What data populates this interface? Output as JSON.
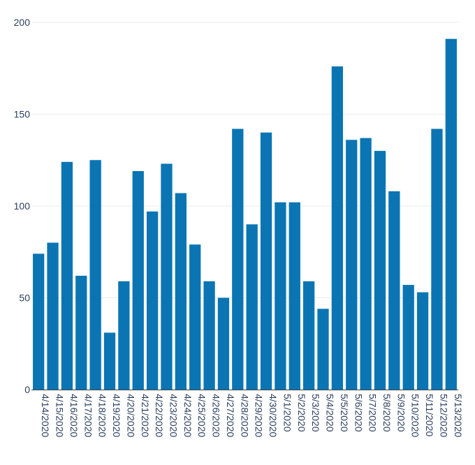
{
  "chart_data": {
    "type": "bar",
    "title": "",
    "xlabel": "",
    "ylabel": "",
    "categories": [
      "4/14/2020",
      "4/15/2020",
      "4/16/2020",
      "4/17/2020",
      "4/18/2020",
      "4/19/2020",
      "4/20/2020",
      "4/21/2020",
      "4/22/2020",
      "4/23/2020",
      "4/24/2020",
      "4/25/2020",
      "4/26/2020",
      "4/27/2020",
      "4/28/2020",
      "4/29/2020",
      "4/30/2020",
      "5/1/2020",
      "5/2/2020",
      "5/3/2020",
      "5/4/2020",
      "5/5/2020",
      "5/6/2020",
      "5/7/2020",
      "5/8/2020",
      "5/9/2020",
      "5/10/2020",
      "5/11/2020",
      "5/12/2020",
      "5/13/2020"
    ],
    "values": [
      74,
      80,
      124,
      62,
      125,
      31,
      59,
      119,
      97,
      123,
      107,
      79,
      59,
      50,
      142,
      90,
      140,
      102,
      102,
      59,
      44,
      176,
      136,
      137,
      130,
      108,
      57,
      53,
      142,
      191
    ],
    "ylim": [
      0,
      200
    ],
    "yticks": [
      0,
      50,
      100,
      150,
      200
    ],
    "grid": true,
    "bar_color": "#0b75b4"
  }
}
